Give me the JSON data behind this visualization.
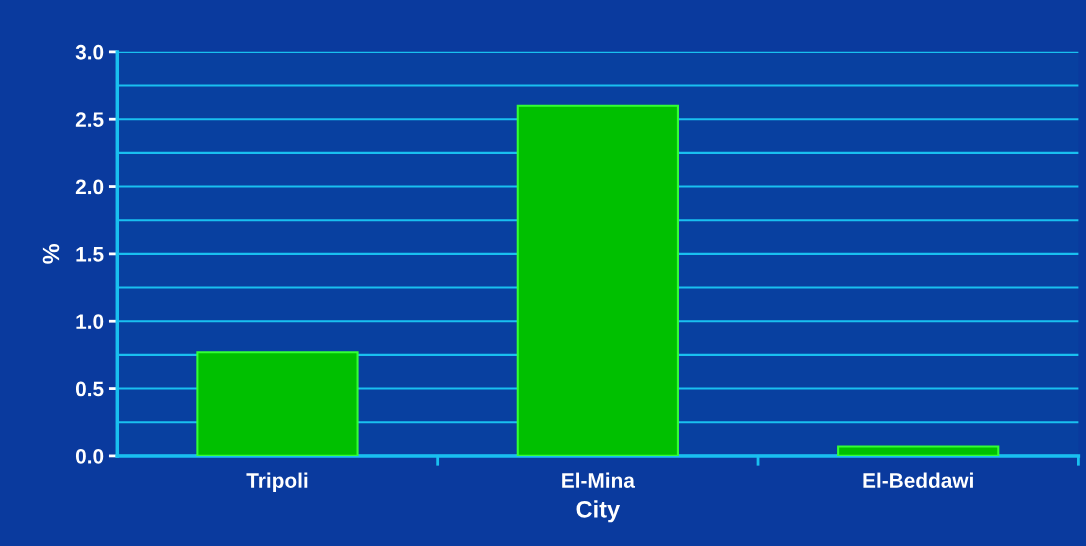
{
  "chart_data": {
    "type": "bar",
    "xlabel": "City",
    "ylabel": "%",
    "categories": [
      "Tripoli",
      "El-Mina",
      "El-Beddawi"
    ],
    "values": [
      0.77,
      2.6,
      0.07
    ],
    "color": "#00c000",
    "ylim": [
      0,
      3
    ],
    "yticks": [
      {
        "value": 0,
        "label": "0.0"
      },
      {
        "value": 0.25,
        "label": null
      },
      {
        "value": 0.5,
        "label": "0.5"
      },
      {
        "value": 0.75,
        "label": null
      },
      {
        "value": 1,
        "label": "1.0"
      },
      {
        "value": 1.25,
        "label": null
      },
      {
        "value": 1.5,
        "label": "1.5"
      },
      {
        "value": 1.75,
        "label": null
      },
      {
        "value": 2,
        "label": "2.0"
      },
      {
        "value": 2.25,
        "label": null
      },
      {
        "value": 2.5,
        "label": "2.5"
      },
      {
        "value": 2.75,
        "label": null
      },
      {
        "value": 3,
        "label": "3.0"
      }
    ],
    "grid": "y"
  }
}
